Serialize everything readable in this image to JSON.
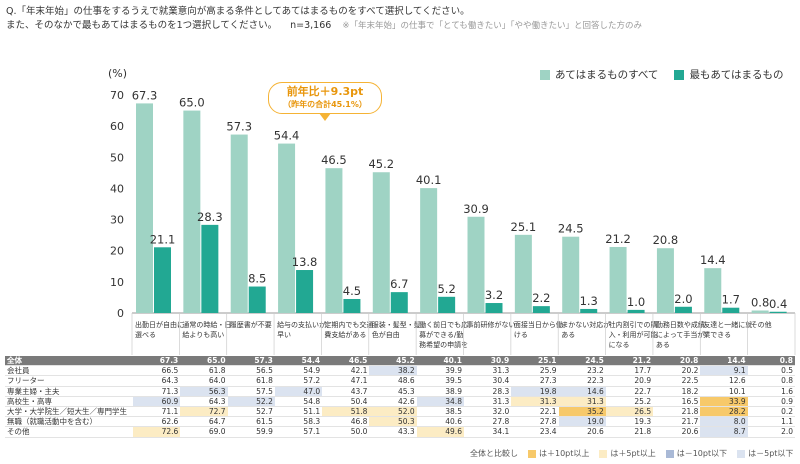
{
  "question": {
    "line1": "Q.「年末年始」の仕事をするうえで就業意向が高まる条件としてあてはまるものをすべて選択してください。",
    "line2": "また、そのなかで最もあてはまるものを1つ選択してください。",
    "n": "n=3,166",
    "note": "※「年末年始」の仕事で「とても働きたい」「やや働きたい」と回答した方のみ"
  },
  "callout": {
    "line1": "前年比＋9.3pt",
    "line2": "（昨年の合計45.1%）"
  },
  "colors": {
    "all": "#9fd3c4",
    "most": "#22a893",
    "callout": "#f5b335"
  },
  "chart_data": {
    "type": "bar",
    "ylabel": "(%)",
    "ylim": [
      0,
      70
    ],
    "yticks": [
      "0",
      "10",
      "20",
      "30",
      "40",
      "50",
      "60",
      "70"
    ],
    "categories": [
      "出勤日が自由に選べる",
      "通常の時給・日給よりも高い",
      "履歴書が不要",
      "給与の支払いが早い",
      "定期内でも交通費支給がある",
      "服装・髪型・髪色が自由",
      "働く前日でも応募ができる/勤務希望の申請を出せる",
      "事前研修がない",
      "面接当日から働ける",
      "まかない対応がある",
      "社内割引での購入・利用が可能になる",
      "勤務日数や成績によって手当がある",
      "友達と一緒に就業できる",
      "その他"
    ],
    "series": [
      {
        "name": "あてはまるものすべて",
        "values": [
          67.3,
          65.0,
          57.3,
          54.4,
          46.5,
          45.2,
          40.1,
          30.9,
          25.1,
          24.5,
          21.2,
          20.8,
          14.4,
          0.8
        ]
      },
      {
        "name": "最もあてはまるもの",
        "values": [
          21.1,
          28.3,
          8.5,
          13.8,
          4.5,
          6.7,
          5.2,
          3.2,
          2.2,
          1.3,
          1.0,
          2.0,
          1.7,
          0.4
        ]
      }
    ]
  },
  "table": {
    "rows": [
      {
        "label": "全体",
        "values": [
          "67.3",
          "65.0",
          "57.3",
          "54.4",
          "46.5",
          "45.2",
          "40.1",
          "30.9",
          "25.1",
          "24.5",
          "21.2",
          "20.8",
          "14.4",
          "0.8"
        ],
        "marks": [
          "",
          "",
          "",
          "",
          "",
          "",
          "",
          "",
          "",
          "",
          "",
          "",
          "",
          ""
        ]
      },
      {
        "label": "会社員",
        "values": [
          "66.5",
          "61.8",
          "56.5",
          "54.9",
          "42.1",
          "38.2",
          "39.9",
          "31.3",
          "25.9",
          "23.2",
          "17.7",
          "20.2",
          "9.1",
          "0.5"
        ],
        "marks": [
          "",
          "",
          "",
          "",
          "",
          "b5",
          "",
          "",
          "",
          "",
          "",
          "",
          "b5",
          ""
        ]
      },
      {
        "label": "フリーター",
        "values": [
          "64.3",
          "64.0",
          "61.8",
          "57.2",
          "47.1",
          "48.6",
          "39.5",
          "30.4",
          "27.3",
          "22.3",
          "20.9",
          "22.5",
          "12.6",
          "0.8"
        ],
        "marks": [
          "",
          "",
          "",
          "",
          "",
          "",
          "",
          "",
          "",
          "",
          "",
          "",
          "",
          ""
        ]
      },
      {
        "label": "専業主婦・主夫",
        "values": [
          "71.3",
          "56.3",
          "57.5",
          "47.0",
          "43.7",
          "45.3",
          "38.9",
          "28.3",
          "19.8",
          "14.6",
          "22.7",
          "18.2",
          "10.1",
          "1.6"
        ],
        "marks": [
          "",
          "b5",
          "",
          "b5",
          "",
          "",
          "",
          "",
          "b5",
          "b5",
          "",
          "",
          "",
          ""
        ]
      },
      {
        "label": "高校生・高専",
        "values": [
          "60.9",
          "64.3",
          "52.2",
          "54.8",
          "50.4",
          "42.6",
          "34.8",
          "31.3",
          "31.3",
          "31.3",
          "25.2",
          "16.5",
          "33.9",
          "0.9"
        ],
        "marks": [
          "b5",
          "",
          "b5",
          "",
          "",
          "",
          "b5",
          "",
          "y5",
          "y5",
          "",
          "",
          "y10",
          ""
        ]
      },
      {
        "label": "大学・大学院生／短大生／専門学生",
        "values": [
          "71.1",
          "72.7",
          "52.7",
          "51.1",
          "51.8",
          "52.0",
          "38.5",
          "32.0",
          "22.1",
          "35.2",
          "26.5",
          "21.8",
          "28.2",
          "0.2"
        ],
        "marks": [
          "",
          "y5",
          "",
          "",
          "y5",
          "y5",
          "",
          "",
          "",
          "y10",
          "y5",
          "",
          "y10",
          ""
        ]
      },
      {
        "label": "無職（就職活動中を含む）",
        "values": [
          "62.6",
          "64.7",
          "61.5",
          "58.3",
          "46.8",
          "50.3",
          "40.6",
          "27.8",
          "27.8",
          "19.0",
          "19.3",
          "21.7",
          "8.0",
          "1.1"
        ],
        "marks": [
          "",
          "",
          "",
          "",
          "",
          "y5",
          "",
          "",
          "",
          "b5",
          "",
          "",
          "b5",
          ""
        ]
      },
      {
        "label": "その他",
        "values": [
          "72.6",
          "69.0",
          "59.9",
          "57.1",
          "50.0",
          "43.3",
          "49.6",
          "34.1",
          "23.4",
          "20.6",
          "21.8",
          "20.6",
          "8.7",
          "2.0"
        ],
        "marks": [
          "y5",
          "",
          "",
          "",
          "",
          "",
          "y5",
          "",
          "",
          "",
          "",
          "",
          "b5",
          ""
        ]
      }
    ]
  },
  "table_legend": {
    "title": "全体と比較し",
    "items": [
      {
        "label": "は＋10pt以上",
        "color": "#f7c96a"
      },
      {
        "label": "は＋5pt以上",
        "color": "#fcecc4"
      },
      {
        "label": "は－10pt以下",
        "color": "#a9b9d6"
      },
      {
        "label": "は－5pt以下",
        "color": "#dbe3f0"
      }
    ]
  }
}
